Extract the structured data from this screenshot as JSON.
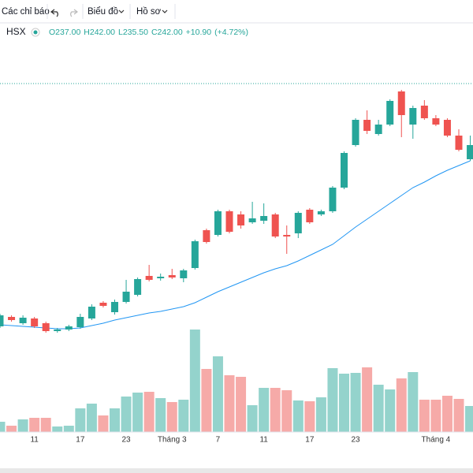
{
  "toolbar": {
    "indicators": "Các chỉ báo",
    "chart": "Biểu đồ",
    "profile": "Hồ sơ"
  },
  "chart_data": {
    "type": "candlestick",
    "exchange": "HSX",
    "ohlc_legend": [
      {
        "value": 237,
        "label": "O237.00"
      },
      {
        "value": 242,
        "label": "H242.00"
      },
      {
        "value": 235.5,
        "label": "L235.50"
      },
      {
        "value": 242,
        "label": "C242.00"
      },
      {
        "value": 10.9,
        "label": "+10.90"
      },
      {
        "value": 4.72,
        "label": "(+4.72%)"
      }
    ],
    "categories": [
      null,
      null,
      null,
      "11",
      null,
      null,
      null,
      "17",
      null,
      null,
      null,
      "23",
      null,
      null,
      null,
      "Tháng 3",
      null,
      null,
      null,
      "7",
      null,
      null,
      null,
      "11",
      null,
      null,
      null,
      "17",
      null,
      null,
      null,
      "23",
      null,
      null,
      null,
      null,
      null,
      null,
      "Tháng 4",
      null,
      null,
      null
    ],
    "open": [
      88,
      94,
      90,
      93,
      90,
      85,
      86,
      87.5,
      93,
      103,
      97,
      103.5,
      108,
      120,
      118.5,
      120.5,
      118.5,
      125,
      149,
      146,
      161,
      159,
      154,
      155,
      159,
      146,
      147,
      162,
      159,
      161,
      176,
      203,
      219,
      210,
      216,
      237,
      216,
      228,
      220,
      219,
      209,
      194
    ],
    "high": [
      96,
      95,
      95,
      94,
      91,
      87,
      89,
      96,
      102,
      104,
      105,
      117.5,
      119,
      127,
      121.5,
      124.5,
      124.5,
      143,
      150,
      162,
      162,
      161,
      167,
      166,
      160,
      152,
      161,
      163,
      162,
      177,
      199,
      220,
      225,
      219,
      232,
      238,
      228,
      231.5,
      222,
      220,
      213,
      209
    ],
    "low": [
      87,
      91,
      89,
      87,
      84,
      84,
      85,
      86.5,
      92,
      100,
      95.5,
      102.5,
      107,
      116.5,
      117,
      118,
      116,
      124,
      140.5,
      145,
      147,
      150,
      153,
      153,
      144,
      134,
      144,
      153,
      158,
      160,
      175,
      202,
      210,
      209,
      215,
      208,
      207,
      219,
      215,
      208,
      199,
      193
    ],
    "close": [
      95,
      92,
      93.5,
      88,
      85,
      86,
      88,
      94,
      100.5,
      101,
      103.5,
      110,
      118,
      117.5,
      119.5,
      119,
      123.5,
      142,
      141.5,
      161,
      148,
      152,
      156.5,
      158,
      145,
      145,
      160,
      154,
      161,
      176,
      198,
      219,
      212,
      216,
      231,
      222,
      226.5,
      220,
      216,
      209,
      200,
      203
    ],
    "up_color": "#26a69a",
    "down_color": "#ef5350",
    "ylim": [
      0,
      280
    ],
    "ma": {
      "color": "#2196f3",
      "values": [
        89,
        88.5,
        88,
        87.5,
        87,
        86.5,
        86.5,
        87,
        88.5,
        90,
        92,
        93.5,
        95,
        96.5,
        97.5,
        99,
        100.5,
        103,
        106.5,
        110,
        113,
        116,
        119,
        122,
        124.5,
        126.5,
        129.5,
        133,
        136.5,
        140,
        145.5,
        151,
        156,
        161,
        166,
        171,
        176,
        179.5,
        183.5,
        187,
        190,
        193
      ]
    },
    "volume": [
      13,
      8,
      16,
      18,
      18,
      7,
      8,
      30,
      36,
      21,
      30,
      45,
      50,
      51,
      43,
      38,
      41,
      130,
      80,
      96,
      72,
      70,
      34,
      56,
      56,
      53,
      40,
      39,
      44,
      81,
      74,
      75,
      82,
      60,
      54,
      68,
      76,
      41,
      41,
      46,
      42,
      33
    ],
    "volume_up_color": "#94d3cc",
    "volume_down_color": "#f6aaa8",
    "volume_ylim": [
      0,
      200
    ]
  }
}
